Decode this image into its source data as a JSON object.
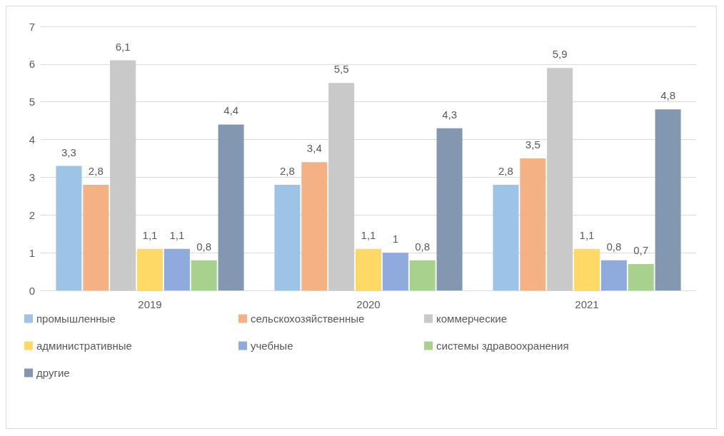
{
  "chart_data": {
    "type": "bar",
    "categories": [
      "2019",
      "2020",
      "2021"
    ],
    "series": [
      {
        "name": "промышленные",
        "color": "#9dc3e6",
        "values": [
          3.3,
          2.8,
          2.8
        ],
        "value_labels": [
          "3,3",
          "2,8",
          "2,8"
        ]
      },
      {
        "name": "сельскохозяйственные",
        "color": "#f4b183",
        "values": [
          2.8,
          3.4,
          3.5
        ],
        "value_labels": [
          "2,8",
          "3,4",
          "3,5"
        ]
      },
      {
        "name": "коммерческие",
        "color": "#c9c9c9",
        "values": [
          6.1,
          5.5,
          5.9
        ],
        "value_labels": [
          "6,1",
          "5,5",
          "5,9"
        ]
      },
      {
        "name": "административные",
        "color": "#ffd966",
        "values": [
          1.1,
          1.1,
          1.1
        ],
        "value_labels": [
          "1,1",
          "1,1",
          "1,1"
        ]
      },
      {
        "name": "учебные",
        "color": "#8faadc",
        "values": [
          1.1,
          1,
          0.8
        ],
        "value_labels": [
          "1,1",
          "1",
          "0,8"
        ]
      },
      {
        "name": "системы здравоохранения",
        "color": "#a9d18e",
        "values": [
          0.8,
          0.8,
          0.7
        ],
        "value_labels": [
          "0,8",
          "0,8",
          "0,7"
        ]
      },
      {
        "name": "другие",
        "color": "#8497b0",
        "values": [
          4.4,
          4.3,
          4.8
        ],
        "value_labels": [
          "4,4",
          "4,3",
          "4,8"
        ]
      }
    ],
    "ylim": [
      0,
      7
    ],
    "yticks": [
      0,
      1,
      2,
      3,
      4,
      5,
      6,
      7
    ],
    "grid": "y",
    "legend": "bottom"
  }
}
